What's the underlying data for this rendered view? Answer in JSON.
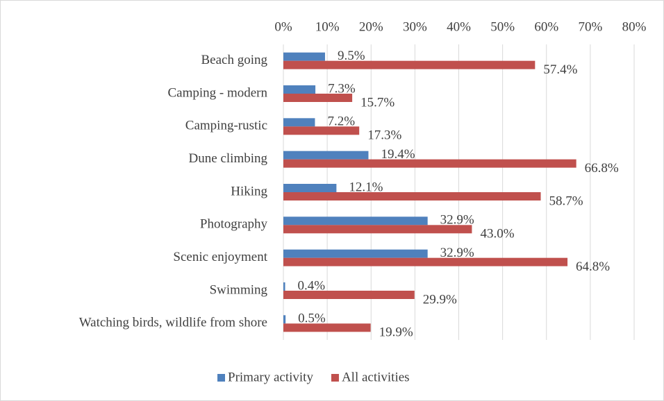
{
  "chart_data": {
    "type": "hbar",
    "categories": [
      "Beach going",
      "Camping - modern",
      "Camping-rustic",
      "Dune climbing",
      "Hiking",
      "Photography",
      "Scenic enjoyment",
      "Swimming",
      "Watching birds, wildlife from shore"
    ],
    "series": [
      {
        "name": "Primary activity",
        "color": "#4f81bd",
        "values": [
          9.5,
          7.3,
          7.2,
          19.4,
          12.1,
          32.9,
          32.9,
          0.4,
          0.5
        ],
        "value_labels": [
          "9.5%",
          "7.3%",
          "7.2%",
          "19.4%",
          "12.1%",
          "32.9%",
          "32.9%",
          "0.4%",
          "0.5%"
        ]
      },
      {
        "name": "All activities",
        "color": "#c0504d",
        "values": [
          57.4,
          15.7,
          17.3,
          66.8,
          58.7,
          43.0,
          64.8,
          29.9,
          19.9
        ],
        "value_labels": [
          "57.4%",
          "15.7%",
          "17.3%",
          "66.8%",
          "58.7%",
          "43.0%",
          "64.8%",
          "29.9%",
          "19.9%"
        ]
      }
    ],
    "xlim": [
      0,
      80
    ],
    "xticks": [
      {
        "value": 0,
        "label": "0%"
      },
      {
        "value": 10,
        "label": "10%"
      },
      {
        "value": 20,
        "label": "20%"
      },
      {
        "value": 30,
        "label": "30%"
      },
      {
        "value": 40,
        "label": "40%"
      },
      {
        "value": 50,
        "label": "50%"
      },
      {
        "value": 60,
        "label": "60%"
      },
      {
        "value": 70,
        "label": "70%"
      },
      {
        "value": 80,
        "label": "80%"
      }
    ],
    "grid": true,
    "legend": "bottom"
  }
}
